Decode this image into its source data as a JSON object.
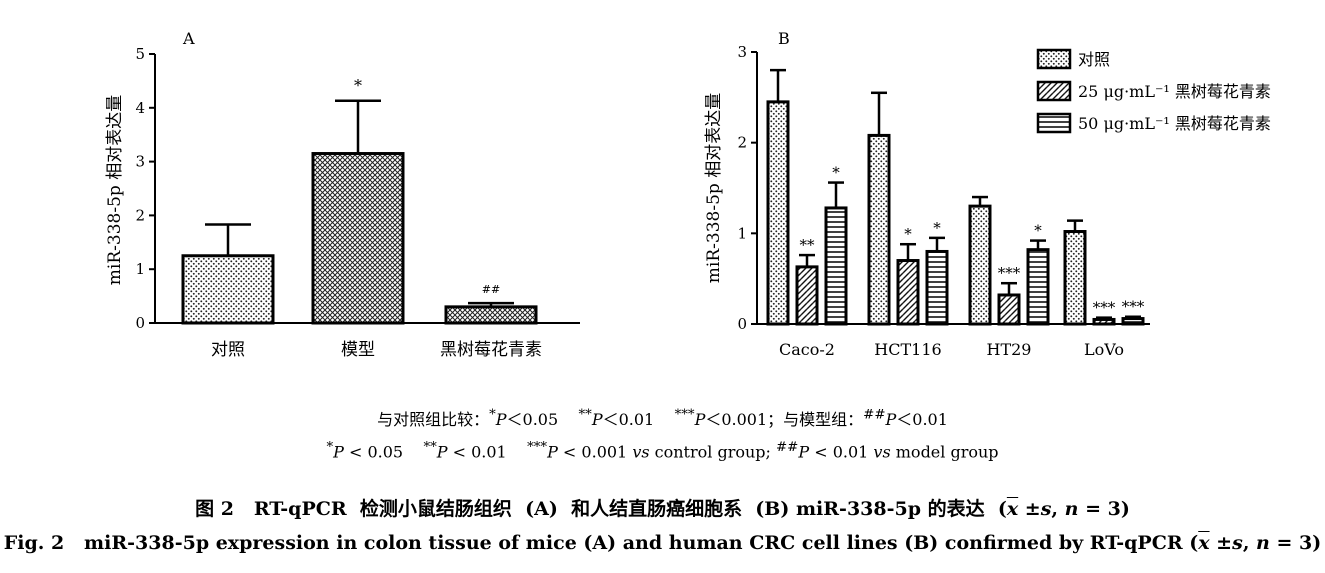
{
  "chart_data": [
    {
      "type": "bar",
      "panel": "A",
      "ylabel": "miR-338-5p 相对表达量",
      "ylim": [
        0,
        5
      ],
      "yticks": [
        "0",
        "1",
        "2",
        "3",
        "4",
        "5"
      ],
      "categories": [
        "对照",
        "模型",
        "黑树莓花青素"
      ],
      "values": [
        1.25,
        3.15,
        0.3
      ],
      "errors": [
        0.58,
        0.98,
        0.07
      ],
      "annotations": [
        "",
        "*",
        "##"
      ],
      "patterns": [
        "dots",
        "cross",
        "cross"
      ]
    },
    {
      "type": "bar",
      "panel": "B",
      "ylabel": "miR-338-5p 相对表达量",
      "ylim": [
        0,
        3
      ],
      "yticks": [
        "0",
        "1",
        "2",
        "3"
      ],
      "categories": [
        "Caco-2",
        "HCT116",
        "HT29",
        "LoVo"
      ],
      "legend_position": "top-right",
      "series": [
        {
          "name": "对照",
          "pattern": "dots",
          "values": [
            2.45,
            2.08,
            1.3,
            1.02
          ],
          "errors": [
            0.35,
            0.47,
            0.1,
            0.12
          ],
          "annotations": [
            "",
            "",
            "",
            ""
          ]
        },
        {
          "name": "25 μg·mL⁻¹ 黑树莓花青素",
          "pattern": "diagonal",
          "values": [
            0.63,
            0.7,
            0.32,
            0.05
          ],
          "errors": [
            0.13,
            0.18,
            0.13,
            0.02
          ],
          "annotations": [
            "**",
            "*",
            "***",
            "***"
          ]
        },
        {
          "name": "50 μg·mL⁻¹ 黑树莓花青素",
          "pattern": "hstripes",
          "values": [
            1.28,
            0.8,
            0.82,
            0.06
          ],
          "errors": [
            0.28,
            0.15,
            0.1,
            0.02
          ],
          "annotations": [
            "*",
            "*",
            "*",
            "***"
          ]
        }
      ]
    }
  ],
  "notes": {
    "line1": {
      "prefix": "与对照组比较：",
      "s1": "*",
      "p1": "P",
      "t1": "＜0.05",
      "s2": "**",
      "p2": "P",
      "t2": "＜0.01",
      "s3": "***",
      "p3": "P",
      "t3": "＜0.001；与模型组：",
      "s4": "##",
      "p4": "P",
      "t4": "＜0.01"
    },
    "line2": {
      "s1": "*",
      "p1": "P",
      "t1": " < 0.05",
      "s2": "**",
      "p2": "P",
      "t2": " < 0.01",
      "s3": "***",
      "p3": "P",
      "t3": " < 0.001 ",
      "vs1": "vs",
      "t4": " control group; ",
      "s4": "##",
      "p4": "P",
      "t5": " < 0.01 ",
      "vs2": "vs",
      "t6": " model group"
    }
  },
  "captions": {
    "cn": {
      "pre": "图 2   RT-qPCR  检测小鼠结肠组织  (A)  和人结直肠癌细胞系  (B) miR-338-5p 的表达  (",
      "xbar": "x",
      "pm": " ±",
      "s": "s",
      "comma": ", ",
      "n": "n",
      "tail": " = 3)"
    },
    "en": {
      "pre": "Fig. 2   miR-338-5p expression in colon tissue of mice (A) and human CRC cell lines (B) confirmed by RT-qPCR (",
      "xbar": "x",
      "pm": " ±",
      "s": "s",
      "comma": ", ",
      "n": "n",
      "tail": " = 3)"
    }
  }
}
